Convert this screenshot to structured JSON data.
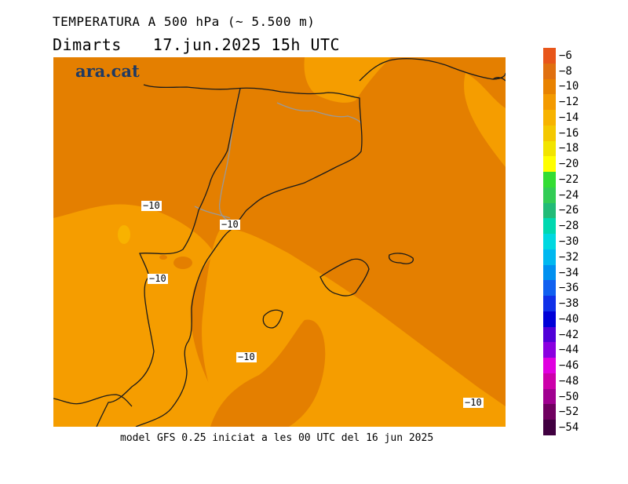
{
  "header": {
    "title": "TEMPERATURA A 500 hPa (~ 5.500 m)",
    "day": "Dimarts",
    "datetime": "17.jun.2025 15h UTC"
  },
  "brand": "ara.cat",
  "footer": "model GFS 0.25 iniciat a les 00 UTC del 16 jun 2025",
  "contour_labels": [
    "−10",
    "−10",
    "−10",
    "−10",
    "−10"
  ],
  "colorbar": {
    "labels": [
      "−6",
      "−8",
      "−10",
      "−12",
      "−14",
      "−16",
      "−18",
      "−20",
      "−22",
      "−24",
      "−26",
      "−28",
      "−30",
      "−32",
      "−34",
      "−36",
      "−38",
      "−40",
      "−42",
      "−44",
      "−46",
      "−48",
      "−50",
      "−52",
      "−54"
    ],
    "colors": [
      "#e8561a",
      "#e07010",
      "#e88200",
      "#f39a00",
      "#f7b300",
      "#f4c800",
      "#f2e400",
      "#ffff00",
      "#33dd33",
      "#33cc55",
      "#22bb77",
      "#00d8b0",
      "#00d8e0",
      "#00b8f0",
      "#0090f0",
      "#1060f0",
      "#1030e8",
      "#0000d8",
      "#5000d8",
      "#8a00e0",
      "#e000e0",
      "#cc00aa",
      "#a00090",
      "#700060",
      "#400040"
    ],
    "map_colors": {
      "darker": "#e47f00",
      "lighter": "#f59d00",
      "border": "#999999"
    }
  }
}
